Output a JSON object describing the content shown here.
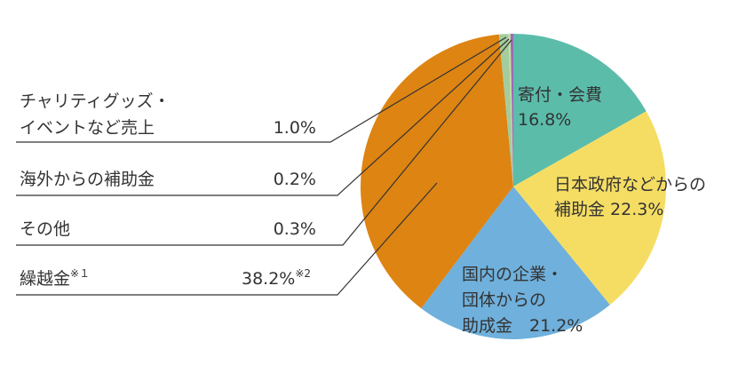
{
  "chart_data": {
    "type": "pie",
    "title": "",
    "start_angle_deg": -90,
    "direction": "clockwise",
    "slices": [
      {
        "label": "寄付・会費",
        "value": 16.8,
        "value_text": "16.8%",
        "color": "#5bbcaa"
      },
      {
        "label": "日本政府などからの補助金",
        "value": 22.3,
        "value_text": "22.3%",
        "color": "#f5dd64"
      },
      {
        "label": "国内の企業・団体からの助成金",
        "value": 21.2,
        "value_text": "21.2%",
        "color": "#6fb0dc"
      },
      {
        "label": "繰越金",
        "value": 38.2,
        "value_text": "38.2%",
        "color": "#dd8413"
      },
      {
        "label": "チャリティグッズ・イベントなど売上",
        "value": 1.0,
        "value_text": "1.0%",
        "color": "#a4cc9c"
      },
      {
        "label": "海外からの補助金",
        "value": 0.2,
        "value_text": "0.2%",
        "color": "#c7df9f"
      },
      {
        "label": "その他",
        "value": 0.3,
        "value_text": "0.3%",
        "color": "#9b6bb8"
      }
    ]
  },
  "inside_labels": {
    "kifu": {
      "line1": "寄付・会費",
      "line2": "16.8%"
    },
    "seifu": {
      "line1": "日本政府などからの",
      "line2": "補助金 22.3%"
    },
    "kokunai": {
      "line1": "国内の企業・",
      "line2": "団体からの",
      "line3": "助成金　21.2%"
    }
  },
  "outside_labels": {
    "charity": {
      "line1": "チャリティグッズ・",
      "line2": "イベントなど売上",
      "value": "1.0%"
    },
    "kaigai": {
      "line1": "海外からの補助金",
      "value": "0.2%"
    },
    "sonota": {
      "line1": "その他",
      "value": "0.3%"
    },
    "kurikoshi": {
      "line1": "繰越金",
      "note1": "※１",
      "value": "38.2%",
      "note2": "※2"
    }
  }
}
